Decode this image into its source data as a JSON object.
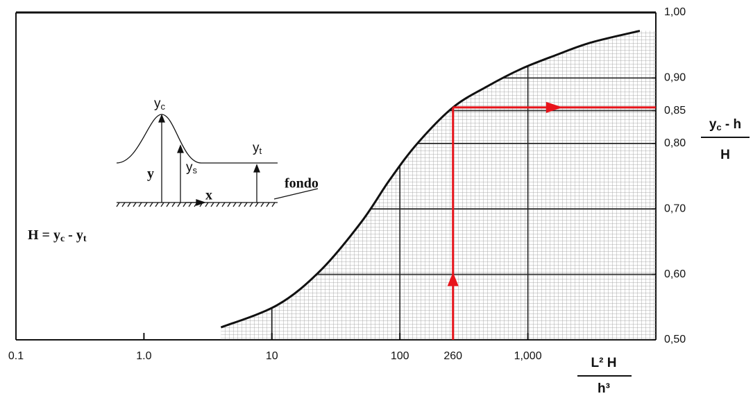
{
  "chart_data": {
    "type": "line",
    "x_scale": "log",
    "x": [
      4,
      11,
      24,
      50,
      83,
      137,
      260,
      480,
      890,
      1660,
      3100,
      7500
    ],
    "series": [
      {
        "color": "#111111",
        "values": [
          0.519,
          0.553,
          0.606,
          0.68,
          0.744,
          0.8,
          0.855,
          0.887,
          0.914,
          0.935,
          0.954,
          0.972
        ]
      }
    ],
    "xlim": [
      0.1,
      10000
    ],
    "xticks": [
      0.1,
      {
        "value": 1,
        "label": "1.0"
      },
      10,
      100,
      260,
      {
        "value": 1000,
        "label": "1,000"
      }
    ],
    "ylim": [
      0.5,
      1.0
    ],
    "yticks": [
      {
        "value": 0.5,
        "label": "0,50"
      },
      {
        "value": 0.6,
        "label": "0,60"
      },
      {
        "value": 0.7,
        "label": "0,70"
      },
      {
        "value": 0.8,
        "label": "0,80"
      },
      {
        "value": 0.85,
        "label": "0,85"
      },
      {
        "value": 0.9,
        "label": "0,90"
      },
      {
        "value": 1.0,
        "label": "1,00"
      }
    ],
    "y_axis_side": "right",
    "grid": true,
    "x_label": {
      "numerator": "L² H",
      "denominator": "h³"
    },
    "y_label": {
      "numerator": [
        "y",
        "c",
        " - h"
      ],
      "denominator": "H"
    },
    "guide": {
      "x": 260,
      "y": 0.855,
      "color": "#e8141b"
    }
  },
  "annotation": {
    "formula": [
      "H = y",
      "c",
      " - y",
      "t"
    ]
  },
  "inset": {
    "crest": [
      "y",
      "c"
    ],
    "surface": [
      "y",
      "s"
    ],
    "tail": [
      "y",
      "t"
    ],
    "depth": "y",
    "axis": "x",
    "bed": "fondo"
  }
}
